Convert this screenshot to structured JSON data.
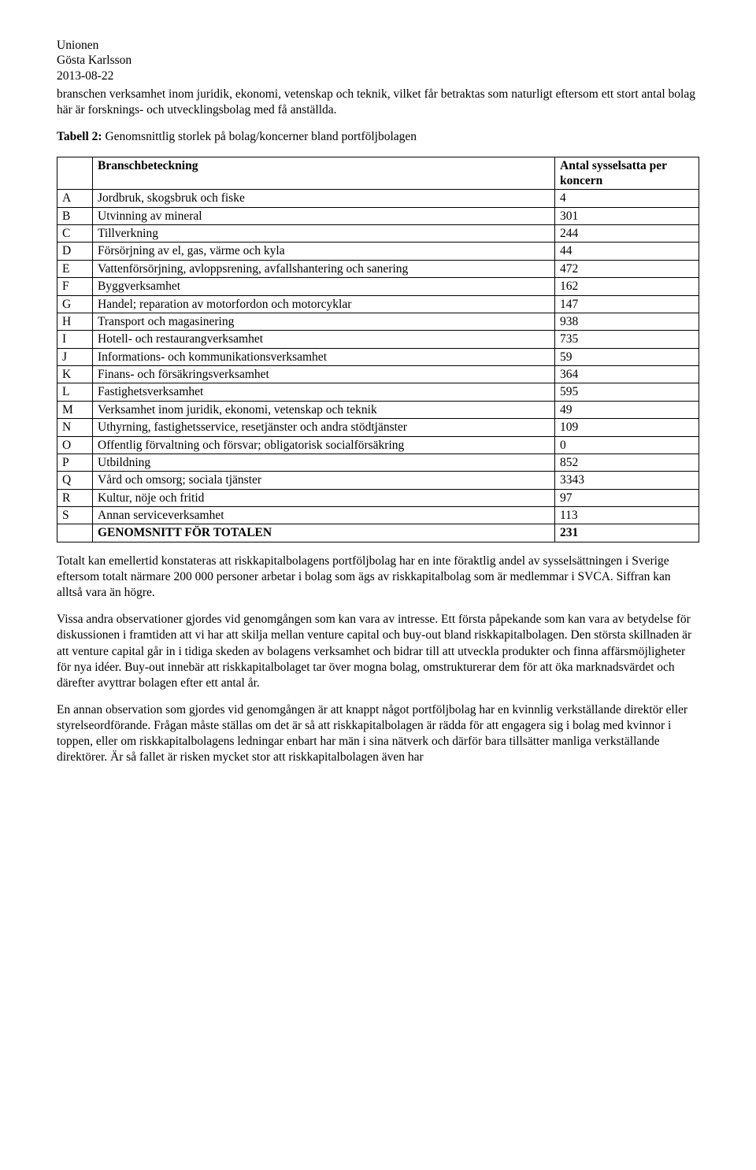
{
  "header": {
    "org": "Unionen",
    "author": "Gösta Karlsson",
    "date": "2013-08-22"
  },
  "intro_para": "branschen verksamhet inom juridik, ekonomi, vetenskap och teknik, vilket får betraktas som naturligt eftersom ett stort antal bolag här är forsknings- och utvecklingsbolag med få anställda.",
  "table": {
    "title_prefix": "Tabell 2:",
    "title_rest": " Genomsnittlig storlek på bolag/koncerner bland portföljbolagen",
    "col_label": "Branschbeteckning",
    "col_value": "Antal sysselsatta per koncern",
    "rows": [
      {
        "code": "A",
        "label": "Jordbruk, skogsbruk och fiske",
        "value": "4"
      },
      {
        "code": "B",
        "label": "Utvinning av mineral",
        "value": "301"
      },
      {
        "code": "C",
        "label": "Tillverkning",
        "value": "244"
      },
      {
        "code": "D",
        "label": "Försörjning av el, gas, värme och kyla",
        "value": "44"
      },
      {
        "code": "E",
        "label": "Vattenförsörjning, avloppsrening, avfallshantering och sanering",
        "value": "472"
      },
      {
        "code": "F",
        "label": "Byggverksamhet",
        "value": "162"
      },
      {
        "code": "G",
        "label": "Handel; reparation av motorfordon och motorcyklar",
        "value": "147"
      },
      {
        "code": "H",
        "label": "Transport och magasinering",
        "value": "938"
      },
      {
        "code": "I",
        "label": "Hotell- och restaurangverksamhet",
        "value": "735"
      },
      {
        "code": "J",
        "label": "Informations- och kommunikationsverksamhet",
        "value": "59"
      },
      {
        "code": "K",
        "label": "Finans- och försäkringsverksamhet",
        "value": "364"
      },
      {
        "code": "L",
        "label": "Fastighetsverksamhet",
        "value": "595"
      },
      {
        "code": "M",
        "label": "Verksamhet inom juridik, ekonomi, vetenskap och teknik",
        "value": "49"
      },
      {
        "code": "N",
        "label": "Uthyrning, fastighetsservice, resetjänster och andra stödtjänster",
        "value": "109"
      },
      {
        "code": "O",
        "label": "Offentlig förvaltning och försvar; obligatorisk socialförsäkring",
        "value": "0"
      },
      {
        "code": "P",
        "label": "Utbildning",
        "value": "852"
      },
      {
        "code": "Q",
        "label": "Vård och omsorg; sociala tjänster",
        "value": "3343"
      },
      {
        "code": "R",
        "label": "Kultur, nöje och fritid",
        "value": "97"
      },
      {
        "code": "S",
        "label": "Annan serviceverksamhet",
        "value": "113"
      }
    ],
    "total_label": "GENOMSNITT FÖR TOTALEN",
    "total_value": "231"
  },
  "body_paras": [
    "Totalt kan emellertid konstateras att riskkapitalbolagens portföljbolag har en inte föraktlig andel av sysselsättningen i Sverige eftersom totalt närmare 200 000 personer arbetar i bolag som ägs av riskkapitalbolag som är medlemmar i SVCA. Siffran kan alltså vara än högre.",
    "Vissa andra observationer gjordes vid genomgången som kan vara av intresse. Ett första påpekande som kan vara av betydelse för diskussionen i framtiden att vi har att skilja mellan venture capital och buy-out bland riskkapitalbolagen. Den största skillnaden är att venture capital går in i tidiga skeden av bolagens verksamhet och bidrar till att utveckla produkter och finna affärsmöjligheter för nya idéer. Buy-out innebär att riskkapitalbolaget tar över mogna bolag, omstrukturerar dem för att öka marknadsvärdet och därefter avyttrar bolagen efter ett antal år.",
    "En annan observation som gjordes vid genomgången är att knappt något portföljbolag har en kvinnlig verkställande direktör eller styrelseordförande. Frågan måste ställas om det är så att riskkapitalbolagen är rädda för att engagera sig i bolag med kvinnor i toppen, eller om riskkapitalbolagens ledningar enbart har män i sina nätverk och därför bara tillsätter manliga verkställande direktörer. Är så fallet är risken mycket stor att riskkapitalbolagen även har"
  ]
}
